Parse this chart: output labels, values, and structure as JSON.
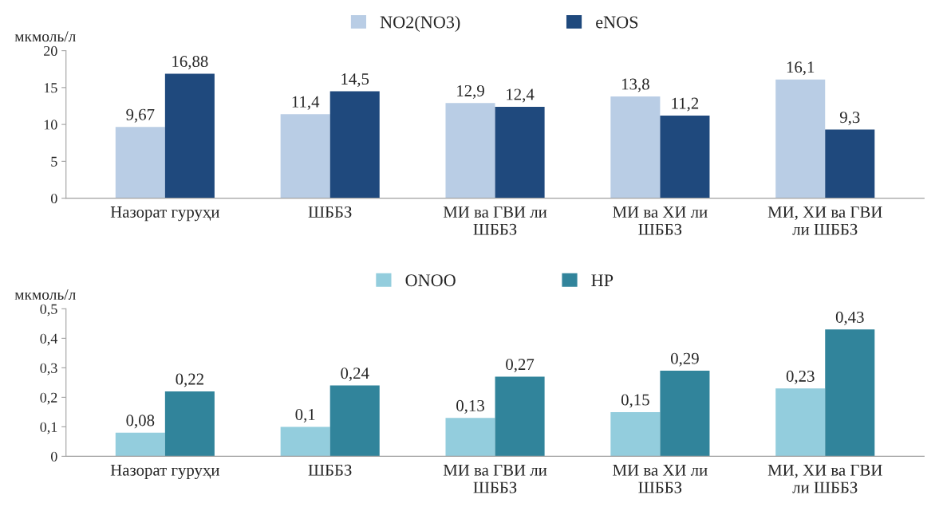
{
  "chart_data": [
    {
      "type": "bar",
      "ylabel": "мкмоль/л",
      "categories": [
        "Назорат гуруҳи",
        "ШББЗ",
        "МИ ва ГВИ ли\nШББЗ",
        "МИ ва ХИ ли\nШББЗ",
        "МИ, ХИ ва ГВИ\nли ШББЗ"
      ],
      "series": [
        {
          "name": "NO2(NO3)",
          "color": "#b9cde5",
          "values": [
            9.67,
            11.4,
            12.9,
            13.8,
            16.1
          ],
          "value_labels": [
            "9,67",
            "11,4",
            "12,9",
            "13,8",
            "16,1"
          ]
        },
        {
          "name": "eNOS",
          "color": "#1f497d",
          "values": [
            16.88,
            14.5,
            12.4,
            11.2,
            9.3
          ],
          "value_labels": [
            "16,88",
            "14,5",
            "12,4",
            "11,2",
            "9,3"
          ]
        }
      ],
      "ylim": [
        0,
        20
      ],
      "yticks": [
        0,
        5,
        10,
        15,
        20
      ],
      "legend": "top",
      "grid": false
    },
    {
      "type": "bar",
      "ylabel": "мкмоль/л",
      "categories": [
        "Назорат гуруҳи",
        "ШББЗ",
        "МИ ва ГВИ ли\nШББЗ",
        "МИ ва ХИ ли\nШББЗ",
        "МИ, ХИ ва ГВИ\nли ШББЗ"
      ],
      "series": [
        {
          "name": "ONOO",
          "color": "#93cddd",
          "values": [
            0.08,
            0.1,
            0.13,
            0.15,
            0.23
          ],
          "value_labels": [
            "0,08",
            "0,1",
            "0,13",
            "0,15",
            "0,23"
          ]
        },
        {
          "name": "HP",
          "color": "#31849b",
          "values": [
            0.22,
            0.24,
            0.27,
            0.29,
            0.43
          ],
          "value_labels": [
            "0,22",
            "0,24",
            "0,27",
            "0,29",
            "0,43"
          ]
        }
      ],
      "ylim": [
        0,
        0.5
      ],
      "yticks": [
        0,
        {
          "value": 0.1,
          "label": "0,1"
        },
        {
          "value": 0.2,
          "label": "0,2"
        },
        {
          "value": 0.3,
          "label": "0,3"
        },
        {
          "value": 0.4,
          "label": "0,4"
        },
        {
          "value": 0.5,
          "label": "0,5"
        }
      ],
      "legend": "top",
      "grid": false
    }
  ]
}
